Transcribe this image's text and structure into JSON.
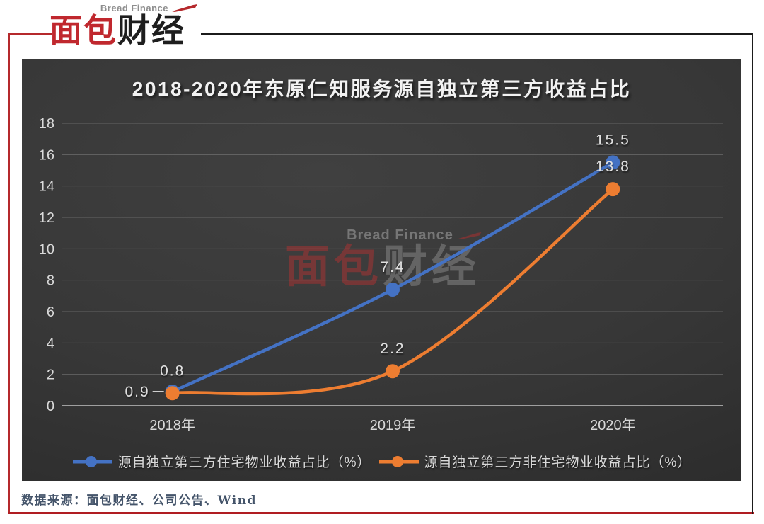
{
  "header": {
    "logo": {
      "tagline": "Bread Finance",
      "brand_red": "面包",
      "brand_dark": "财经"
    }
  },
  "watermark": {
    "tagline": "Bread Finance",
    "brand_red": "面包",
    "brand_dark": "财经"
  },
  "footer": {
    "source_note": "数据来源：面包财经、公司公告、Wind"
  },
  "colors": {
    "frame_red": "#b5292c",
    "frame_black": "#1b1b1b",
    "series_blue": "#4472C4",
    "series_orange": "#ED7D31",
    "tick_text": "#d9d9d9",
    "axis_line": "#9f9f9f"
  },
  "chart_data": {
    "type": "line",
    "title": "2018-2020年东原仁知服务源自独立第三方收益占比",
    "categories": [
      "2018年",
      "2019年",
      "2020年"
    ],
    "series": [
      {
        "name": "源自独立第三方住宅物业收益占比（%）",
        "color": "#4472C4",
        "values": [
          0.9,
          7.4,
          15.5
        ],
        "data_labels": [
          "0.9",
          "7.4",
          "15.5"
        ],
        "label_positions": [
          "left",
          "above",
          "above"
        ]
      },
      {
        "name": "源自独立第三方非住宅物业收益占比（%）",
        "color": "#ED7D31",
        "values": [
          0.8,
          2.2,
          13.8
        ],
        "data_labels": [
          "0.8",
          "2.2",
          "13.8"
        ],
        "label_positions": [
          "above",
          "above",
          "above"
        ]
      }
    ],
    "xlabel": "",
    "ylabel": "",
    "ylim": [
      0,
      18
    ],
    "yticks": [
      0,
      2,
      4,
      6,
      8,
      10,
      12,
      14,
      16,
      18
    ],
    "grid": true,
    "smooth": true,
    "legend_position": "bottom"
  }
}
